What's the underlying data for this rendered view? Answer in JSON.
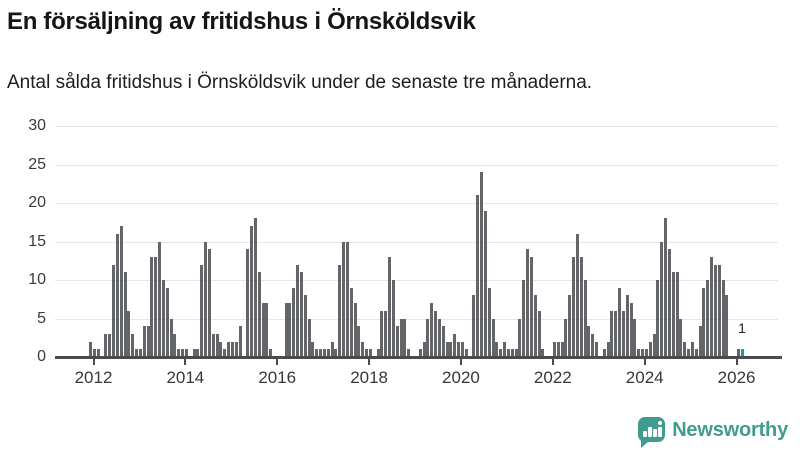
{
  "header": {
    "title": "En försäljning av fritidshus i Örnsköldsvik",
    "subtitle": "Antal sålda fritidshus i Örnsköldsvik under de senaste tre månaderna."
  },
  "chart_data": {
    "type": "bar",
    "title": "En försäljning av fritidshus i Örnsköldsvik",
    "subtitle": "Antal sålda fritidshus i Örnsköldsvik under de senaste tre månaderna.",
    "xlabel": "",
    "ylabel": "",
    "ylim": [
      0,
      30
    ],
    "y_ticks": [
      0,
      5,
      10,
      15,
      20,
      25,
      30
    ],
    "x_tick_labels": [
      "2012",
      "2014",
      "2016",
      "2018",
      "2020",
      "2022",
      "2024",
      "2026"
    ],
    "x_start_month": "2011-12",
    "frequency": "monthly",
    "grid": true,
    "legend": false,
    "values": [
      2,
      1,
      1,
      0,
      3,
      3,
      12,
      16,
      17,
      11,
      6,
      3,
      1,
      1,
      4,
      4,
      13,
      13,
      15,
      10,
      9,
      5,
      3,
      1,
      1,
      1,
      0,
      1,
      1,
      12,
      15,
      14,
      3,
      3,
      2,
      1,
      2,
      2,
      2,
      4,
      0,
      14,
      17,
      18,
      11,
      7,
      7,
      1,
      0,
      0,
      0,
      7,
      7,
      9,
      12,
      11,
      8,
      5,
      2,
      1,
      1,
      1,
      1,
      2,
      1,
      12,
      15,
      15,
      9,
      7,
      4,
      2,
      1,
      1,
      0,
      1,
      6,
      6,
      13,
      10,
      4,
      5,
      5,
      1,
      0,
      0,
      1,
      2,
      5,
      7,
      6,
      5,
      4,
      2,
      2,
      3,
      2,
      2,
      1,
      0,
      8,
      21,
      24,
      19,
      9,
      5,
      2,
      1,
      2,
      1,
      1,
      1,
      5,
      10,
      14,
      13,
      8,
      6,
      1,
      0,
      0,
      2,
      2,
      2,
      5,
      8,
      13,
      16,
      13,
      10,
      4,
      3,
      2,
      0,
      1,
      2,
      6,
      6,
      9,
      6,
      8,
      7,
      5,
      1,
      1,
      1,
      2,
      3,
      10,
      15,
      18,
      14,
      11,
      11,
      5,
      2,
      1,
      2,
      1,
      4,
      9,
      10,
      13,
      12,
      12,
      10,
      8,
      0,
      0,
      1,
      1
    ],
    "highlight": {
      "index": 170,
      "value": 1,
      "label": "1"
    },
    "colors": {
      "bar": "#636569",
      "highlight_bar": "#0da3a4",
      "gridline": "#e7e7e7",
      "axis": "#4b4b4e"
    }
  },
  "annotation": {
    "last_value_label": "1"
  },
  "footer": {
    "brand": "Newsworthy",
    "brand_color": "#3f9c8e"
  }
}
